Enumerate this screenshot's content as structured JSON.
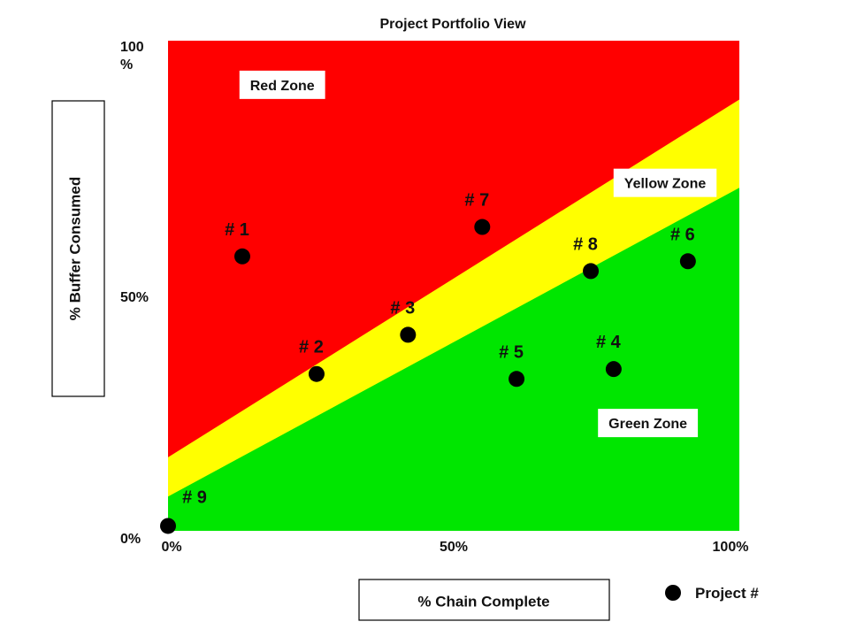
{
  "chart_data": {
    "type": "scatter",
    "title": "Project Portfolio View",
    "xlabel": "% Chain Complete",
    "ylabel": "% Buffer Consumed",
    "xlim": [
      0,
      100
    ],
    "ylim": [
      0,
      100
    ],
    "x_ticks": [
      "0%",
      "50%",
      "100%"
    ],
    "y_ticks": [
      {
        "value": 100,
        "lines": [
          "100",
          "%"
        ]
      },
      {
        "value": 50,
        "lines": [
          "50%"
        ]
      },
      {
        "value": 0,
        "lines": [
          "0%"
        ]
      }
    ],
    "zones": [
      {
        "name": "Red Zone",
        "color": "#ff0000",
        "label_at": [
          20,
          91
        ]
      },
      {
        "name": "Yellow Zone",
        "color": "#ffff00",
        "label_at": [
          87,
          71
        ]
      },
      {
        "name": "Green Zone",
        "color": "#00e600",
        "label_at": [
          84,
          22
        ]
      }
    ],
    "zone_boundaries": {
      "yellow_upper": {
        "at_x0": 15,
        "at_x100": 88
      },
      "yellow_lower": {
        "at_x0": 7,
        "at_x100": 70
      }
    },
    "points": [
      {
        "label": "# 1",
        "x": 13,
        "y": 56
      },
      {
        "label": "# 2",
        "x": 26,
        "y": 32
      },
      {
        "label": "# 3",
        "x": 42,
        "y": 40
      },
      {
        "label": "# 4",
        "x": 78,
        "y": 33
      },
      {
        "label": "# 5",
        "x": 61,
        "y": 31
      },
      {
        "label": "# 6",
        "x": 91,
        "y": 55
      },
      {
        "label": "# 7",
        "x": 55,
        "y": 62
      },
      {
        "label": "# 8",
        "x": 74,
        "y": 53
      },
      {
        "label": "# 9",
        "x": 0,
        "y": 1
      }
    ],
    "legend": {
      "label": "Project #",
      "position": "bottom-right"
    },
    "grid": false
  }
}
